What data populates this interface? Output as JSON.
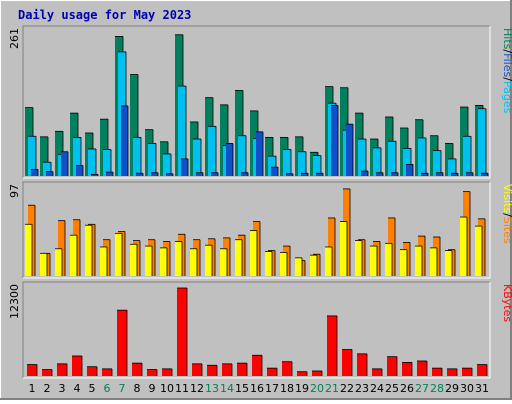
{
  "chart_data": {
    "type": "bar",
    "title": "Daily usage for May 2023",
    "categories": [
      "1",
      "2",
      "3",
      "4",
      "5",
      "6",
      "7",
      "8",
      "9",
      "10",
      "11",
      "12",
      "13",
      "14",
      "15",
      "16",
      "17",
      "18",
      "19",
      "20",
      "21",
      "22",
      "23",
      "24",
      "25",
      "26",
      "27",
      "28",
      "29",
      "30",
      "31"
    ],
    "weekend_days": [
      "6",
      "7",
      "13",
      "14",
      "20",
      "21",
      "27",
      "28"
    ],
    "colors": {
      "background": "#c0c0c0",
      "title": "#0000b0",
      "hits": "#00805c",
      "files": "#00c0f0",
      "pages": "#1050c8",
      "visits": "#ff8000",
      "sites": "#ffff00",
      "kbytes": "#ff0000",
      "weekday_label": "#000000",
      "weekend_label": "#00805c"
    },
    "panels": [
      {
        "name": "hits-files-pages",
        "ymax_label": "261",
        "ylim": [
          0,
          261
        ],
        "legend": [
          {
            "text": "Pages",
            "color": "#00c0f0"
          },
          {
            "text": "/",
            "color": "#000000"
          },
          {
            "text": "Files",
            "color": "#1050c8"
          },
          {
            "text": "/",
            "color": "#000000"
          },
          {
            "text": "Hits",
            "color": "#00805c"
          }
        ],
        "series": [
          {
            "name": "Hits",
            "values": [
              124,
              71,
              81,
              114,
              78,
              103,
              253,
              184,
              84,
              62,
              256,
              98,
              142,
              129,
              155,
              118,
              70,
              70,
              71,
              43,
              162,
              160,
              114,
              67,
              107,
              87,
              102,
              73,
              59,
              125,
              128
            ]
          },
          {
            "name": "Files",
            "values": [
              72,
              25,
              39,
              70,
              49,
              48,
              225,
              70,
              59,
              40,
              163,
              67,
              90,
              55,
              73,
              68,
              36,
              48,
              44,
              37,
              132,
              83,
              67,
              51,
              63,
              50,
              69,
              46,
              31,
              72,
              122
            ]
          },
          {
            "name": "Pages",
            "values": [
              12,
              8,
              44,
              19,
              3,
              7,
              127,
              5,
              6,
              4,
              31,
              6,
              6,
              59,
              6,
              80,
              16,
              4,
              5,
              5,
              128,
              94,
              9,
              6,
              6,
              21,
              5,
              6,
              5,
              6,
              5
            ]
          }
        ]
      },
      {
        "name": "visits-sites",
        "ymax_label": "97",
        "ylim": [
          0,
          97
        ],
        "legend": [
          {
            "text": "Sites",
            "color": "#ff8000"
          },
          {
            "text": "/",
            "color": "#000000"
          },
          {
            "text": "Visits",
            "color": "#ffff00"
          }
        ],
        "series": [
          {
            "name": "Visits",
            "values": [
              78,
              25,
              61,
              62,
              57,
              40,
              49,
              39,
              40,
              38,
              46,
              40,
              41,
              42,
              45,
              60,
              28,
              33,
              17,
              24,
              64,
              96,
              40,
              38,
              64,
              37,
              44,
              43,
              29,
              93,
              63
            ]
          },
          {
            "name": "Sites",
            "values": [
              57,
              25,
              30,
              45,
              56,
              32,
              47,
              35,
              33,
              31,
              38,
              30,
              34,
              30,
              40,
              50,
              27,
              26,
              20,
              23,
              32,
              60,
              39,
              33,
              36,
              29,
              33,
              31,
              28,
              65,
              55
            ]
          }
        ]
      },
      {
        "name": "kbytes",
        "ymax_label": "12300",
        "ylim": [
          0,
          12300
        ],
        "legend": [
          {
            "text": "KBytes",
            "color": "#ff0000"
          }
        ],
        "series": [
          {
            "name": "KBytes",
            "values": [
              1600,
              900,
              1700,
              2800,
              1300,
              1000,
              9200,
              1800,
              900,
              1000,
              12300,
              1700,
              1500,
              1700,
              1800,
              2900,
              1100,
              2000,
              600,
              700,
              8400,
              3700,
              3100,
              1000,
              2700,
              1900,
              2100,
              1100,
              1000,
              1100,
              1600
            ]
          }
        ]
      }
    ]
  }
}
